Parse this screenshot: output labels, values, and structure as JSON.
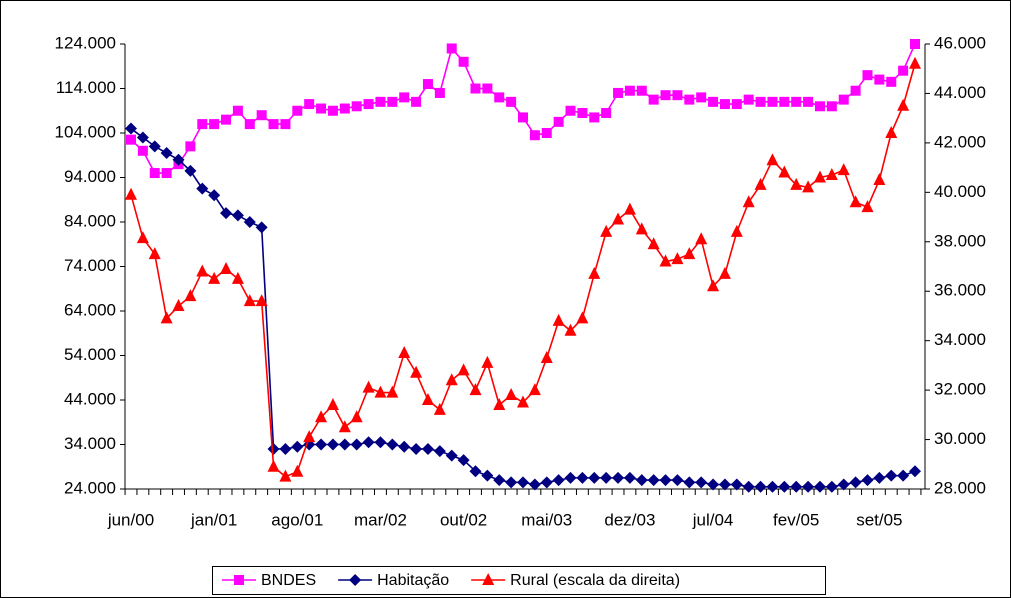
{
  "chart_data": {
    "type": "line",
    "categories": [
      "jun/00",
      null,
      null,
      null,
      null,
      null,
      null,
      "jan/01",
      null,
      null,
      null,
      null,
      null,
      null,
      "ago/01",
      null,
      null,
      null,
      null,
      null,
      null,
      "mar/02",
      null,
      null,
      null,
      null,
      null,
      null,
      "out/02",
      null,
      null,
      null,
      null,
      null,
      null,
      "mai/03",
      null,
      null,
      null,
      null,
      null,
      null,
      "dez/03",
      null,
      null,
      null,
      null,
      null,
      null,
      "jul/04",
      null,
      null,
      null,
      null,
      null,
      null,
      "fev/05",
      null,
      null,
      null,
      null,
      null,
      null,
      "set/05",
      null,
      null,
      null
    ],
    "series": [
      {
        "name": "BNDES",
        "color": "#ff00ff",
        "marker": "square",
        "axis": "y",
        "values": [
          102500,
          100000,
          95000,
          95000,
          97000,
          101000,
          106000,
          106000,
          107000,
          109000,
          106000,
          108000,
          106000,
          106000,
          109000,
          110500,
          109500,
          109000,
          109500,
          110000,
          110500,
          111000,
          111000,
          112000,
          111000,
          115000,
          113000,
          123000,
          120000,
          114000,
          114000,
          112000,
          111000,
          107500,
          103500,
          104000,
          106500,
          109000,
          108500,
          107500,
          108500,
          113000,
          113500,
          113500,
          111500,
          112500,
          112500,
          111500,
          112000,
          111000,
          110500,
          110500,
          111500,
          111000,
          111000,
          111000,
          111000,
          111000,
          110000,
          110000,
          111500,
          113500,
          117000,
          116000,
          115500,
          118000,
          124000
        ]
      },
      {
        "name": "Habitação",
        "color": "#000080",
        "marker": "diamond",
        "axis": "y",
        "values": [
          105000,
          103000,
          101000,
          99500,
          98000,
          95500,
          91500,
          90000,
          86000,
          85500,
          84000,
          82800,
          33000,
          33000,
          33500,
          34000,
          34000,
          34000,
          34000,
          34000,
          34500,
          34500,
          34000,
          33500,
          33000,
          33000,
          32500,
          31500,
          30500,
          28000,
          27000,
          26000,
          25500,
          25500,
          25000,
          25500,
          26000,
          26500,
          26500,
          26500,
          26500,
          26500,
          26500,
          26000,
          26000,
          26000,
          26000,
          25500,
          25500,
          25000,
          25000,
          25000,
          24500,
          24500,
          24500,
          24500,
          24500,
          24500,
          24500,
          24500,
          25000,
          25500,
          26000,
          26500,
          27000,
          27000,
          28000
        ]
      },
      {
        "name": "Rural (escala da direita)",
        "color": "#ff0000",
        "marker": "triangle",
        "axis": "y2",
        "values": [
          39900,
          38150,
          37500,
          34900,
          35400,
          35800,
          36800,
          36500,
          36900,
          36500,
          35600,
          35600,
          28900,
          28500,
          28700,
          30100,
          30900,
          31400,
          30500,
          30900,
          32100,
          31900,
          31900,
          33500,
          32700,
          31600,
          31200,
          32400,
          32800,
          32000,
          33100,
          31400,
          31800,
          31500,
          32000,
          33300,
          34800,
          34400,
          34900,
          36700,
          38400,
          38900,
          39300,
          38500,
          37900,
          37200,
          37300,
          37500,
          38100,
          36200,
          36700,
          38400,
          39600,
          40300,
          41300,
          40800,
          40300,
          40200,
          40600,
          40700,
          40900,
          39600,
          39400,
          40500,
          42400,
          43500,
          45200
        ]
      }
    ],
    "ylim": [
      24000,
      124000
    ],
    "yticks": [
      {
        "value": 24000,
        "label": "24.000"
      },
      {
        "value": 34000,
        "label": "34.000"
      },
      {
        "value": 44000,
        "label": "44.000"
      },
      {
        "value": 54000,
        "label": "54.000"
      },
      {
        "value": 64000,
        "label": "64.000"
      },
      {
        "value": 74000,
        "label": "74.000"
      },
      {
        "value": 84000,
        "label": "84.000"
      },
      {
        "value": 94000,
        "label": "94.000"
      },
      {
        "value": 104000,
        "label": "104.000"
      },
      {
        "value": 114000,
        "label": "114.000"
      },
      {
        "value": 124000,
        "label": "124.000"
      }
    ],
    "y2lim": [
      28000,
      46000
    ],
    "y2ticks": [
      {
        "value": 28000,
        "label": "28.000"
      },
      {
        "value": 30000,
        "label": "30.000"
      },
      {
        "value": 32000,
        "label": "32.000"
      },
      {
        "value": 34000,
        "label": "34.000"
      },
      {
        "value": 36000,
        "label": "36.000"
      },
      {
        "value": 38000,
        "label": "38.000"
      },
      {
        "value": 40000,
        "label": "40.000"
      },
      {
        "value": 42000,
        "label": "42.000"
      },
      {
        "value": 44000,
        "label": "44.000"
      },
      {
        "value": 46000,
        "label": "46.000"
      }
    ],
    "grid": false,
    "legend": "bottom"
  }
}
